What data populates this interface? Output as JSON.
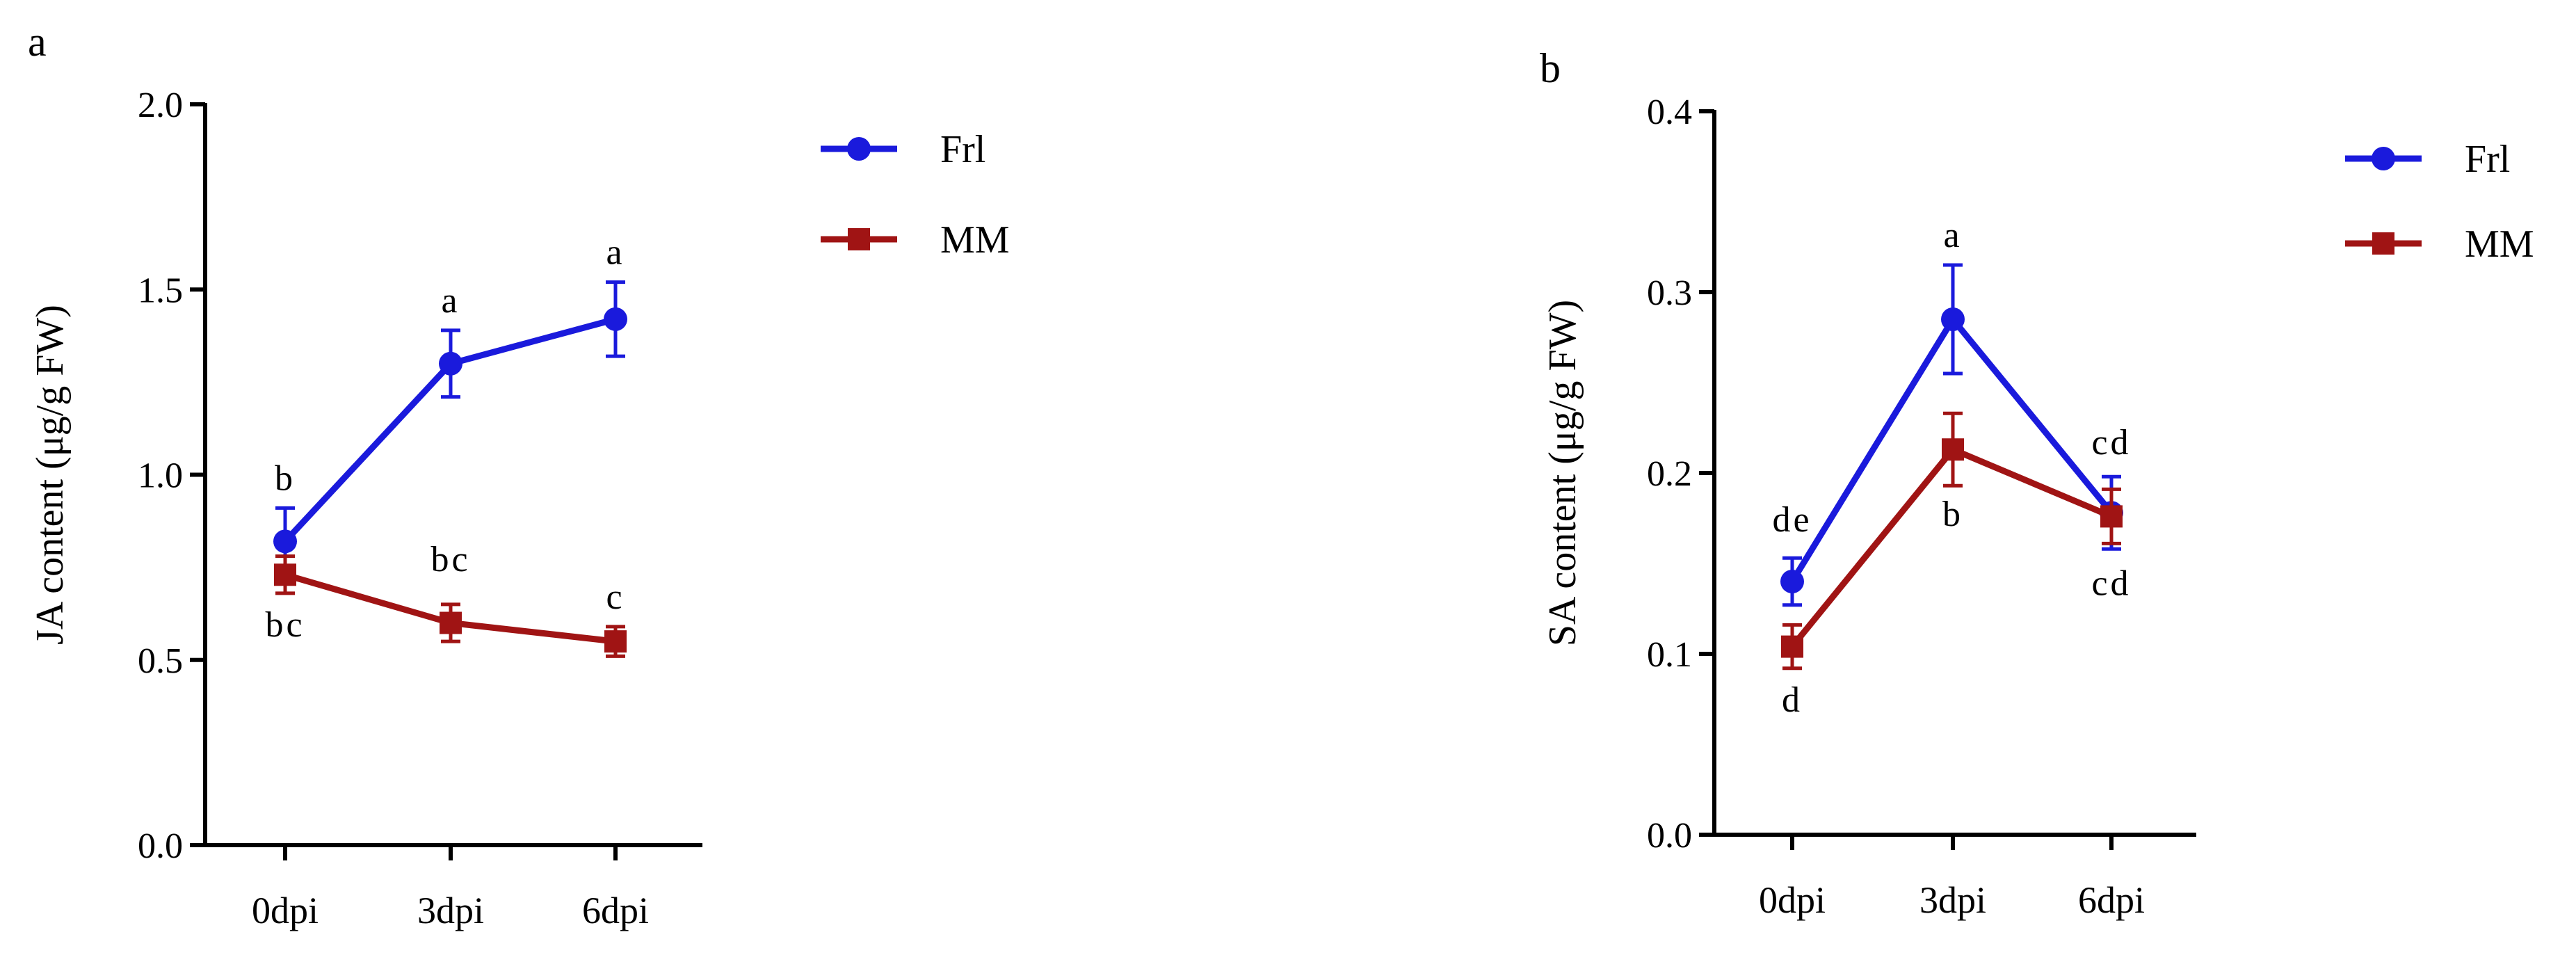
{
  "chart_data": [
    {
      "panel": "a",
      "type": "line",
      "categories": [
        "0dpi",
        "3dpi",
        "6dpi"
      ],
      "ylabel": "JA content (μg/g  FW)",
      "ylim": [
        0,
        2.0
      ],
      "yticks": [
        "0.0",
        "0.5",
        "1.0",
        "1.5",
        "2.0"
      ],
      "legend": "top-right",
      "series": [
        {
          "name": "Frl",
          "marker": "circle",
          "color": "#1a1adc",
          "values": [
            0.82,
            1.3,
            1.42
          ],
          "errors": [
            0.09,
            0.09,
            0.1
          ],
          "labels": [
            "b",
            "a",
            "a"
          ]
        },
        {
          "name": "MM",
          "marker": "square",
          "color": "#a01414",
          "values": [
            0.73,
            0.6,
            0.55
          ],
          "errors": [
            0.05,
            0.05,
            0.04
          ],
          "labels": [
            "bc",
            "bc",
            "c"
          ]
        }
      ]
    },
    {
      "panel": "b",
      "type": "line",
      "categories": [
        "0dpi",
        "3dpi",
        "6dpi"
      ],
      "ylabel": "SA content (μg/g  FW)",
      "ylim": [
        0,
        0.4
      ],
      "yticks": [
        "0.0",
        "0.1",
        "0.2",
        "0.3",
        "0.4"
      ],
      "legend": "top-right",
      "series": [
        {
          "name": "Frl",
          "marker": "circle",
          "color": "#1a1adc",
          "values": [
            0.14,
            0.285,
            0.178
          ],
          "errors": [
            0.013,
            0.03,
            0.02
          ],
          "labels": [
            "de",
            "a",
            "cd"
          ]
        },
        {
          "name": "MM",
          "marker": "square",
          "color": "#a01414",
          "values": [
            0.104,
            0.213,
            0.176
          ],
          "errors": [
            0.012,
            0.02,
            0.015
          ],
          "labels": [
            "d",
            "b",
            "cd"
          ]
        }
      ]
    }
  ]
}
